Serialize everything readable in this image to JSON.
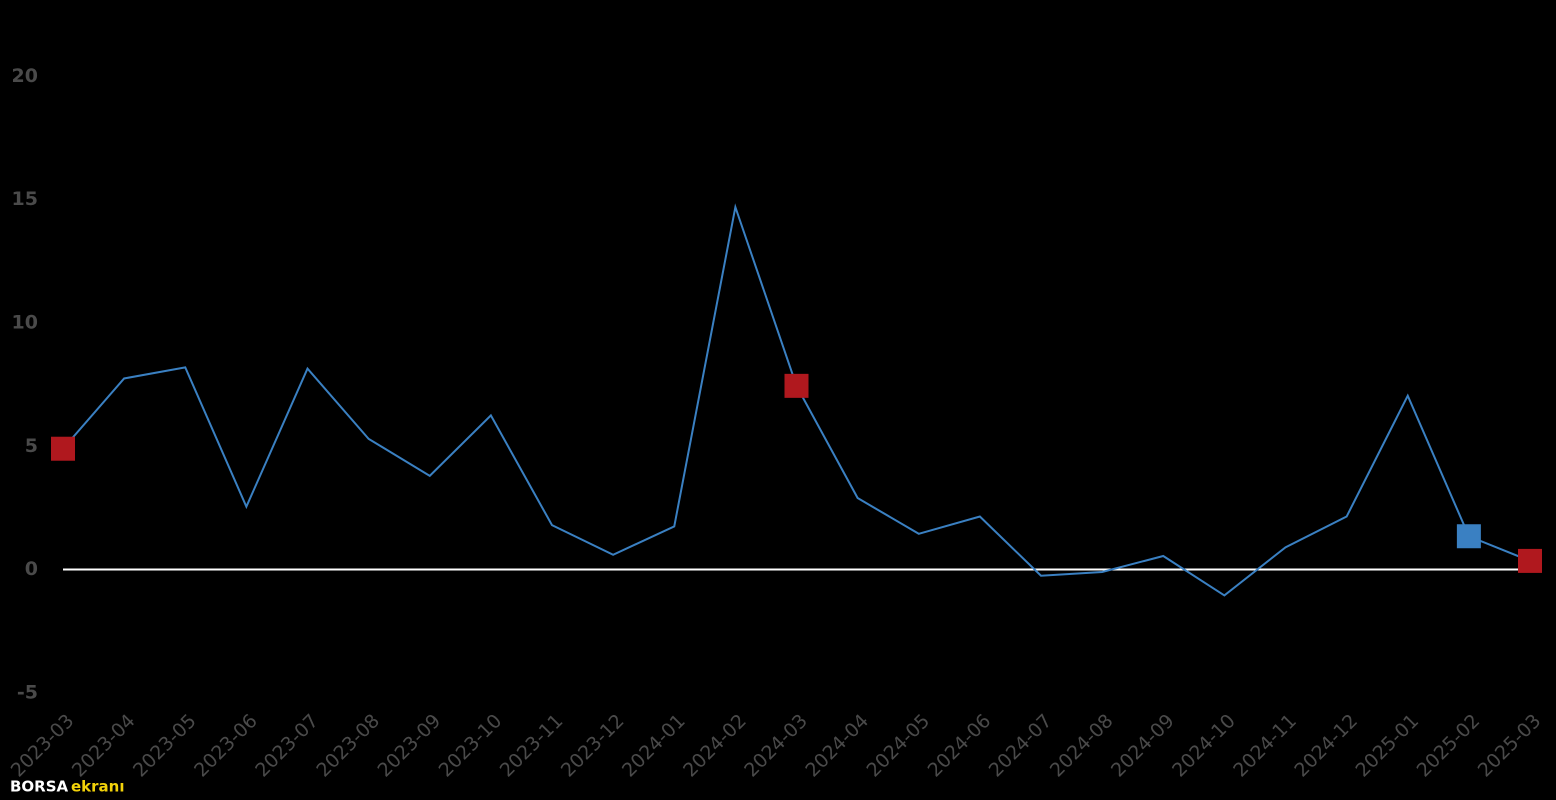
{
  "chart_data": {
    "type": "line",
    "categories": [
      "2023-03",
      "2023-04",
      "2023-05",
      "2023-06",
      "2023-07",
      "2023-08",
      "2023-09",
      "2023-10",
      "2023-11",
      "2023-12",
      "2024-01",
      "2024-02",
      "2024-03",
      "2024-04",
      "2024-05",
      "2024-06",
      "2024-07",
      "2024-08",
      "2024-09",
      "2024-10",
      "2024-11",
      "2024-12",
      "2025-01",
      "2025-02",
      "2025-03"
    ],
    "series": [
      {
        "color": "#3a80c2",
        "values": [
          4.9,
          7.75,
          8.2,
          2.55,
          8.15,
          5.3,
          3.8,
          6.25,
          1.8,
          0.6,
          1.75,
          14.7,
          7.45,
          2.9,
          1.45,
          2.15,
          -0.25,
          -0.1,
          0.55,
          -1.05,
          0.9,
          2.15,
          7.05,
          1.35,
          0.35
        ],
        "marker_colors": [
          "#b0181e",
          null,
          null,
          null,
          null,
          null,
          null,
          null,
          null,
          null,
          null,
          null,
          "#b0181e",
          null,
          null,
          null,
          null,
          null,
          null,
          null,
          null,
          null,
          null,
          "#3a80c2",
          "#b0181e"
        ]
      }
    ],
    "ylim": [
      -5.9,
      23.1
    ],
    "yticks": [
      -5,
      0,
      5,
      10,
      15,
      20
    ],
    "zero_line_color": "#ffffff",
    "logo": {
      "first": "BORSA",
      "second": "ekranı"
    }
  }
}
